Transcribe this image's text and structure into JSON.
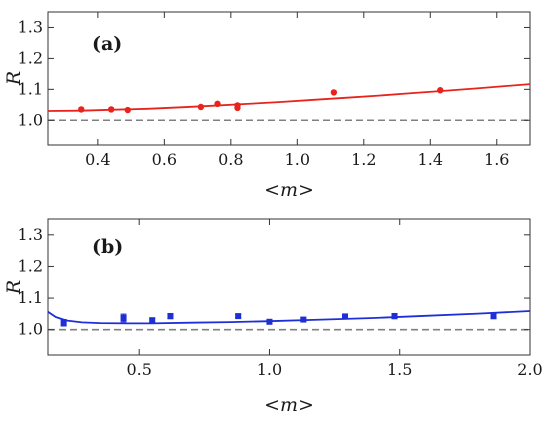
{
  "chart_data": [
    {
      "type": "scatter",
      "panel_label": "(a)",
      "xlabel": "<m>",
      "ylabel": "R",
      "xlim": [
        0.25,
        1.7
      ],
      "ylim": [
        0.92,
        1.35
      ],
      "xticks": [
        "0.4",
        "0.6",
        "0.8",
        "1.0",
        "1.2",
        "1.4",
        "1.6"
      ],
      "xtick_values": [
        0.4,
        0.6,
        0.8,
        1.0,
        1.2,
        1.4,
        1.6
      ],
      "yticks": [
        "1.0",
        "1.1",
        "1.2",
        "1.3"
      ],
      "ytick_values": [
        1.0,
        1.1,
        1.2,
        1.3
      ],
      "reference_line": 1.0,
      "color": "#e8231c",
      "points": [
        {
          "x": 0.35,
          "y": 1.035
        },
        {
          "x": 0.44,
          "y": 1.035
        },
        {
          "x": 0.49,
          "y": 1.033
        },
        {
          "x": 0.71,
          "y": 1.043
        },
        {
          "x": 0.76,
          "y": 1.053
        },
        {
          "x": 0.82,
          "y": 1.048
        },
        {
          "x": 0.82,
          "y": 1.04
        },
        {
          "x": 1.11,
          "y": 1.09
        },
        {
          "x": 1.43,
          "y": 1.097
        }
      ],
      "fit_curve": [
        [
          0.25,
          1.03
        ],
        [
          0.35,
          1.031
        ],
        [
          0.45,
          1.034
        ],
        [
          0.55,
          1.037
        ],
        [
          0.65,
          1.042
        ],
        [
          0.75,
          1.047
        ],
        [
          0.85,
          1.053
        ],
        [
          0.95,
          1.059
        ],
        [
          1.05,
          1.066
        ],
        [
          1.15,
          1.073
        ],
        [
          1.25,
          1.08
        ],
        [
          1.35,
          1.088
        ],
        [
          1.45,
          1.096
        ],
        [
          1.55,
          1.104
        ],
        [
          1.7,
          1.117
        ]
      ]
    },
    {
      "type": "scatter",
      "panel_label": "(b)",
      "xlabel": "<m>",
      "ylabel": "R",
      "xlim": [
        0.15,
        2.0
      ],
      "ylim": [
        0.92,
        1.35
      ],
      "xticks": [
        "0.5",
        "1.0",
        "1.5",
        "2.0"
      ],
      "xtick_values": [
        0.5,
        1.0,
        1.5,
        2.0
      ],
      "yticks": [
        "1.0",
        "1.1",
        "1.2",
        "1.3"
      ],
      "ytick_values": [
        1.0,
        1.1,
        1.2,
        1.3
      ],
      "reference_line": 1.0,
      "color": "#1f2fd6",
      "points": [
        {
          "x": 0.21,
          "y": 1.022,
          "err": 0.01
        },
        {
          "x": 0.44,
          "y": 1.037,
          "err": 0.012
        },
        {
          "x": 0.55,
          "y": 1.03,
          "err": 0.006
        },
        {
          "x": 0.62,
          "y": 1.043,
          "err": 0.008
        },
        {
          "x": 0.88,
          "y": 1.043,
          "err": 0.005
        },
        {
          "x": 1.0,
          "y": 1.025,
          "err": 0.004
        },
        {
          "x": 1.13,
          "y": 1.032,
          "err": 0.005
        },
        {
          "x": 1.29,
          "y": 1.042,
          "err": 0.005
        },
        {
          "x": 1.48,
          "y": 1.043,
          "err": 0.008
        },
        {
          "x": 1.86,
          "y": 1.043,
          "err": 0.008
        }
      ],
      "fit_curve": [
        [
          0.15,
          1.057
        ],
        [
          0.18,
          1.04
        ],
        [
          0.22,
          1.029
        ],
        [
          0.28,
          1.023
        ],
        [
          0.35,
          1.021
        ],
        [
          0.45,
          1.02
        ],
        [
          0.55,
          1.02
        ],
        [
          0.7,
          1.022
        ],
        [
          0.85,
          1.024
        ],
        [
          1.0,
          1.027
        ],
        [
          1.2,
          1.032
        ],
        [
          1.4,
          1.037
        ],
        [
          1.6,
          1.044
        ],
        [
          1.8,
          1.051
        ],
        [
          2.0,
          1.059
        ]
      ]
    }
  ]
}
